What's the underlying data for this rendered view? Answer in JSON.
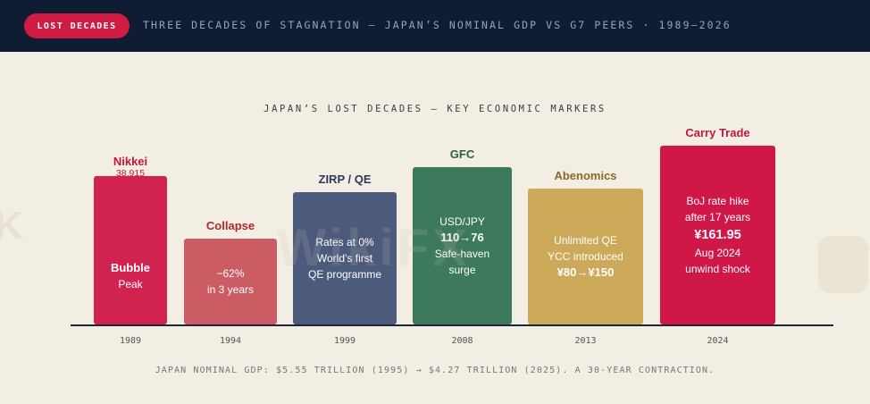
{
  "header": {
    "badge": "LOST DECADES",
    "headline": "THREE DECADES OF STAGNATION — JAPAN’S NOMINAL GDP VS G7 PEERS · 1989–2026"
  },
  "chart": {
    "title": "JAPAN’S LOST DECADES — KEY ECONOMIC MARKERS",
    "footer": "JAPAN NOMINAL GDP: $5.55 TRILLION (1995) → $4.27 TRILLION (2025). A 30-YEAR CONTRACTION.",
    "watermark": "WikiFX"
  },
  "chart_data": {
    "type": "bar",
    "categories": [
      "1989",
      "1994",
      "1999",
      "2008",
      "2013",
      "2024"
    ],
    "bars": [
      {
        "year": "1989",
        "label": "Nikkei",
        "sublabel": "38,915",
        "lines": [
          "Bubble",
          "Peak"
        ],
        "color": "#d12350",
        "label_color": "#c3163f",
        "relative_height": 0.83
      },
      {
        "year": "1994",
        "label": "Collapse",
        "lines": [
          "−62%",
          "in 3 years"
        ],
        "color": "#cb5c63",
        "label_color": "#b0272f",
        "relative_height": 0.48
      },
      {
        "year": "1999",
        "label": "ZIRP / QE",
        "lines": [
          "Rates at 0%",
          "World’s first",
          "QE programme"
        ],
        "color": "#4c5a7c",
        "label_color": "#2e3a5a",
        "relative_height": 0.74
      },
      {
        "year": "2008",
        "label": "GFC",
        "lines": [
          "USD/JPY",
          "110→76",
          "Safe-haven",
          "surge"
        ],
        "color": "#3d7a5b",
        "label_color": "#2c5e44",
        "relative_height": 0.88
      },
      {
        "year": "2013",
        "label": "Abenomics",
        "lines": [
          "Unlimited QE",
          "YCC introduced",
          "¥80→¥150"
        ],
        "color": "#cda95a",
        "label_color": "#8a6a22",
        "relative_height": 0.76
      },
      {
        "year": "2024",
        "label": "Carry Trade",
        "lines": [
          "BoJ rate hike",
          "after 17 years",
          "¥161.95",
          "Aug 2024",
          "unwind shock"
        ],
        "color": "#d01848",
        "label_color": "#c3163f",
        "relative_height": 1.0
      }
    ]
  }
}
